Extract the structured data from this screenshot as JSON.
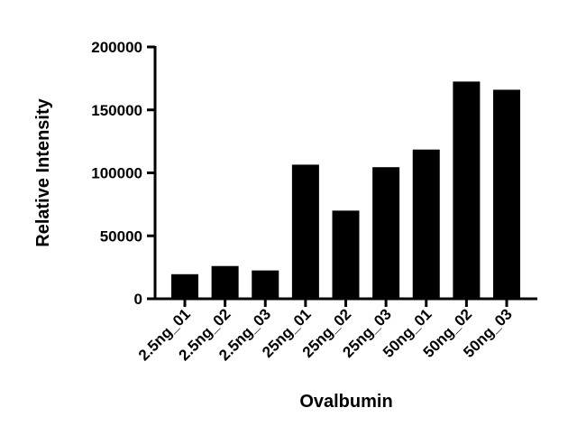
{
  "chart_data": {
    "type": "bar",
    "title": "",
    "xlabel": "Ovalbumin",
    "ylabel": "Relative Intensity",
    "categories": [
      "2.5ng_01",
      "2.5ng_02",
      "2.5ng_03",
      "25ng_01",
      "25ng_02",
      "25ng_03",
      "50ng_01",
      "50ng_02",
      "50ng_03"
    ],
    "values": [
      19500,
      26000,
      22500,
      106500,
      70000,
      104500,
      118500,
      172500,
      166000
    ],
    "ylim": [
      0,
      200000
    ],
    "yticks": [
      0,
      50000,
      100000,
      150000,
      200000
    ],
    "ytick_labels": [
      "0",
      "50000",
      "100000",
      "150000",
      "200000"
    ],
    "grid": false,
    "legend": "none",
    "bar_color": "#000000"
  }
}
